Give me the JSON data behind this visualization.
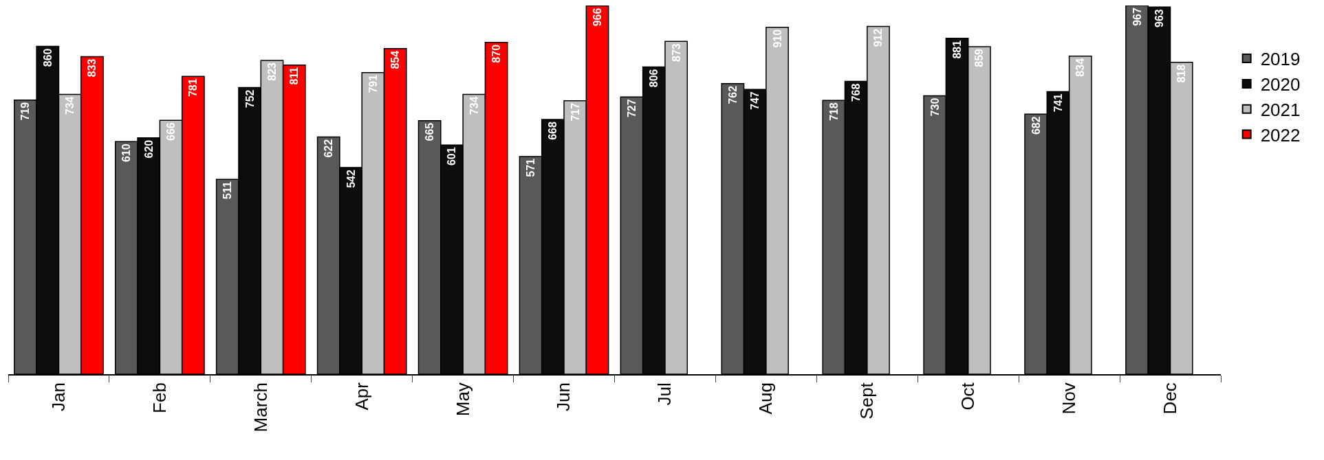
{
  "chart_data": {
    "type": "bar",
    "categories": [
      "Jan",
      "Feb",
      "March",
      "Apr",
      "May",
      "Jun",
      "Jul",
      "Aug",
      "Sept",
      "Oct",
      "Nov",
      "Dec"
    ],
    "series": [
      {
        "name": "2019",
        "color": "#595959",
        "values": [
          719,
          610,
          511,
          622,
          665,
          571,
          727,
          762,
          718,
          730,
          682,
          967
        ]
      },
      {
        "name": "2020",
        "color": "#0d0d0d",
        "values": [
          860,
          620,
          752,
          542,
          601,
          668,
          806,
          747,
          768,
          881,
          741,
          963
        ]
      },
      {
        "name": "2021",
        "color": "#bfbfbf",
        "values": [
          734,
          666,
          823,
          791,
          734,
          717,
          873,
          910,
          912,
          859,
          834,
          818
        ]
      },
      {
        "name": "2022",
        "color": "#ff0000",
        "values": [
          833,
          781,
          811,
          854,
          870,
          966,
          null,
          null,
          null,
          null,
          null,
          null
        ]
      }
    ],
    "data_labels": true,
    "legend": "right"
  }
}
